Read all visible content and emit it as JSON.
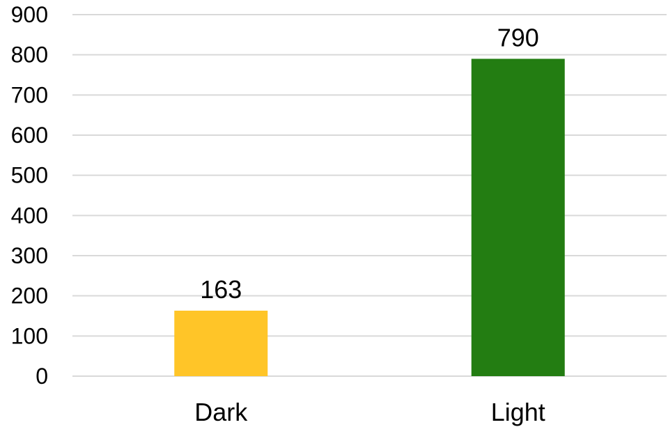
{
  "chart_data": {
    "type": "bar",
    "title": "",
    "xlabel": "",
    "ylabel": "",
    "categories": [
      "Dark",
      "Light"
    ],
    "values": [
      163,
      790
    ],
    "data_labels": [
      "163",
      "790"
    ],
    "ylim": [
      0,
      900
    ],
    "yticks": [
      0,
      100,
      200,
      300,
      400,
      500,
      600,
      700,
      800,
      900
    ],
    "ytick_labels": [
      "0",
      "100",
      "200",
      "300",
      "400",
      "500",
      "600",
      "700",
      "800",
      "900"
    ],
    "grid": true,
    "legend": "none",
    "colors": [
      "#FFC528",
      "#237D12"
    ]
  }
}
